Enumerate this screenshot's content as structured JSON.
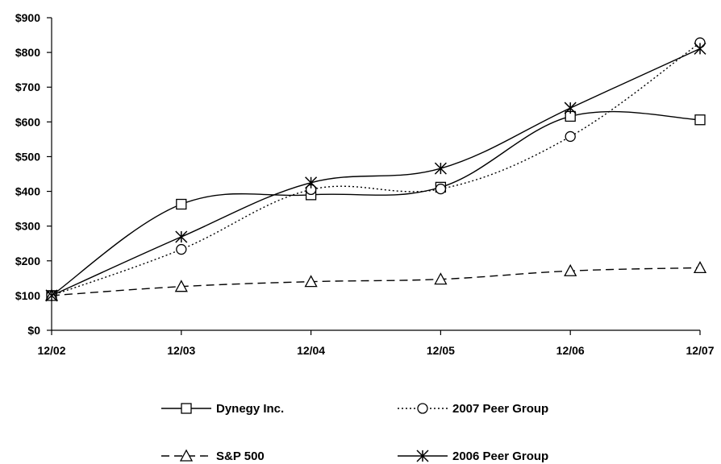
{
  "chart_data": {
    "type": "line",
    "title": "",
    "xlabel": "",
    "ylabel": "",
    "categories": [
      "12/02",
      "12/03",
      "12/04",
      "12/05",
      "12/06",
      "12/07"
    ],
    "ylim": [
      0,
      900
    ],
    "y_ticks": [
      "$0",
      "$100",
      "$200",
      "$300",
      "$400",
      "$500",
      "$600",
      "$700",
      "$800",
      "$900"
    ],
    "grid": false,
    "legend_position": "bottom",
    "series": [
      {
        "name": "Dynegy Inc.",
        "marker": "square",
        "dash": "solid",
        "values": [
          100,
          363,
          390,
          412,
          616,
          606
        ]
      },
      {
        "name": "2007 Peer Group",
        "marker": "circle",
        "dash": "dotted",
        "values": [
          100,
          233,
          405,
          407,
          558,
          828
        ]
      },
      {
        "name": "S&P 500",
        "marker": "triangle",
        "dash": "dashed",
        "values": [
          100,
          126,
          140,
          147,
          171,
          180
        ]
      },
      {
        "name": "2006 Peer Group",
        "marker": "asterisk",
        "dash": "solid",
        "values": [
          100,
          269,
          425,
          466,
          640,
          811
        ]
      }
    ]
  }
}
